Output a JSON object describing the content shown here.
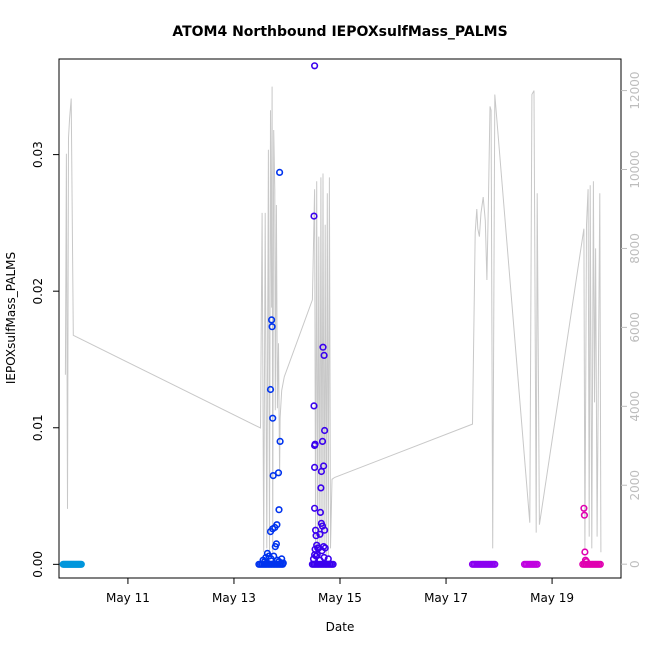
{
  "chart_data": {
    "type": "scatter",
    "title": "ATOM4 Northbound IEPOXsulfMass_PALMS",
    "xlabel": "Date",
    "ylabel": "IEPOXsulfMass_PALMS",
    "x_unit": "day-of-May",
    "xlim": [
      9.7,
      20.3
    ],
    "ylim": [
      -0.001,
      0.037
    ],
    "y2lim": [
      -350,
      12800
    ],
    "x_ticks": [
      {
        "value": 11,
        "label": "May 11"
      },
      {
        "value": 13,
        "label": "May 13"
      },
      {
        "value": 15,
        "label": "May 15"
      },
      {
        "value": 17,
        "label": "May 17"
      },
      {
        "value": 19,
        "label": "May 19"
      }
    ],
    "y_ticks": [
      {
        "value": 0.0,
        "label": "0.00"
      },
      {
        "value": 0.01,
        "label": "0.01"
      },
      {
        "value": 0.02,
        "label": "0.02"
      },
      {
        "value": 0.03,
        "label": "0.03"
      }
    ],
    "y2_ticks": [
      {
        "value": 0,
        "label": "0"
      },
      {
        "value": 2000,
        "label": "2000"
      },
      {
        "value": 4000,
        "label": "4000"
      },
      {
        "value": 6000,
        "label": "6000"
      },
      {
        "value": 8000,
        "label": "8000"
      },
      {
        "value": 10000,
        "label": "10000"
      },
      {
        "value": 12000,
        "label": "12000"
      }
    ],
    "grid": false,
    "legend": "none",
    "altitude_color": "#c8c8c8",
    "altitude_x": [
      9.82,
      9.84,
      9.86,
      9.88,
      9.9,
      9.93,
      9.97,
      13.5,
      13.5,
      13.53,
      13.56,
      13.59,
      13.62,
      13.65,
      13.67,
      13.69,
      13.71,
      13.72,
      13.73,
      13.75,
      13.77,
      13.78,
      13.8,
      13.82,
      13.84,
      13.86,
      13.87,
      13.9,
      13.95,
      14.48,
      14.52,
      14.54,
      14.56,
      14.58,
      14.6,
      14.62,
      14.64,
      14.66,
      14.68,
      14.7,
      14.72,
      14.74,
      14.76,
      14.78,
      14.8,
      14.82,
      14.85,
      14.9,
      17.5,
      17.55,
      17.58,
      17.6,
      17.63,
      17.66,
      17.7,
      17.74,
      17.77,
      17.8,
      17.83,
      17.85,
      17.88,
      17.92,
      18.58,
      18.62,
      18.66,
      18.7,
      18.72,
      18.76,
      19.6,
      19.62,
      19.65,
      19.68,
      19.7,
      19.72,
      19.75,
      19.78,
      19.8,
      19.82,
      19.85,
      19.9,
      19.92
    ],
    "altitude_y": [
      4800,
      10400,
      1400,
      10800,
      11300,
      11800,
      5800,
      3450,
      3450,
      8900,
      300,
      8900,
      400,
      10500,
      200,
      11500,
      6500,
      12100,
      300,
      11000,
      9500,
      3900,
      9100,
      3950,
      5600,
      2250,
      3700,
      4400,
      4750,
      6700,
      9500,
      300,
      9700,
      400,
      8300,
      300,
      9800,
      500,
      9900,
      500,
      8600,
      200,
      9400,
      200,
      9800,
      400,
      2150,
      2200,
      3550,
      8400,
      9000,
      8500,
      8300,
      8900,
      9300,
      8700,
      7200,
      9300,
      11600,
      11500,
      400,
      11900,
      1050,
      11900,
      12000,
      800,
      9400,
      1000,
      8500,
      400,
      8600,
      9500,
      700,
      9600,
      400,
      9700,
      4100,
      8000,
      700,
      9400,
      300
    ],
    "series": [
      {
        "color": "#0096dc",
        "points": [
          [
            9.78,
            0
          ],
          [
            9.8,
            0
          ],
          [
            9.82,
            0
          ],
          [
            9.84,
            0
          ],
          [
            9.86,
            0
          ],
          [
            9.88,
            0
          ],
          [
            9.9,
            0
          ],
          [
            9.92,
            0
          ],
          [
            9.94,
            0
          ],
          [
            9.96,
            0
          ],
          [
            9.98,
            0
          ],
          [
            10.0,
            0
          ],
          [
            10.02,
            0
          ],
          [
            10.04,
            0
          ],
          [
            10.06,
            0
          ],
          [
            10.08,
            0
          ],
          [
            10.1,
            0
          ],
          [
            10.12,
            0
          ]
        ]
      },
      {
        "color": "#0033ee",
        "points": [
          [
            13.47,
            0
          ],
          [
            13.5,
            0
          ],
          [
            13.53,
            0
          ],
          [
            13.56,
            0
          ],
          [
            13.59,
            0
          ],
          [
            13.62,
            0
          ],
          [
            13.65,
            0
          ],
          [
            13.68,
            0
          ],
          [
            13.71,
            0
          ],
          [
            13.74,
            0
          ],
          [
            13.77,
            0
          ],
          [
            13.8,
            0
          ],
          [
            13.83,
            0
          ],
          [
            13.86,
            0
          ],
          [
            13.89,
            0
          ],
          [
            13.92,
            0
          ],
          [
            13.55,
            0.0003
          ],
          [
            13.6,
            0.0005
          ],
          [
            13.63,
            0.0008
          ],
          [
            13.58,
            0.0002
          ],
          [
            13.7,
            0.0004
          ],
          [
            13.75,
            0.0006
          ],
          [
            13.82,
            0.0003
          ],
          [
            13.85,
            0.0002
          ],
          [
            13.9,
            0.0004
          ],
          [
            13.93,
            0.0001
          ],
          [
            13.69,
            0.0128
          ],
          [
            13.71,
            0.0179
          ],
          [
            13.72,
            0.0174
          ],
          [
            13.73,
            0.0107
          ],
          [
            13.86,
            0.0287
          ],
          [
            13.87,
            0.009
          ],
          [
            13.74,
            0.0065
          ],
          [
            13.84,
            0.0067
          ],
          [
            13.85,
            0.004
          ],
          [
            13.77,
            0.0027
          ],
          [
            13.81,
            0.0029
          ],
          [
            13.69,
            0.0024
          ],
          [
            13.73,
            0.0026
          ],
          [
            13.78,
            0.0013
          ],
          [
            13.8,
            0.0015
          ],
          [
            13.66,
            0.0006
          ]
        ]
      },
      {
        "color": "#3a00ee",
        "points": [
          [
            14.48,
            0
          ],
          [
            14.51,
            0
          ],
          [
            14.54,
            0
          ],
          [
            14.57,
            0
          ],
          [
            14.6,
            0
          ],
          [
            14.63,
            0
          ],
          [
            14.66,
            0
          ],
          [
            14.69,
            0
          ],
          [
            14.72,
            0
          ],
          [
            14.75,
            0
          ],
          [
            14.78,
            0
          ],
          [
            14.81,
            0
          ],
          [
            14.84,
            0
          ],
          [
            14.87,
            0
          ],
          [
            14.5,
            0.0004
          ],
          [
            14.55,
            0.0006
          ],
          [
            14.62,
            0.0003
          ],
          [
            14.7,
            0.0005
          ],
          [
            14.78,
            0.0004
          ],
          [
            14.52,
            0.0365
          ],
          [
            14.51,
            0.0255
          ],
          [
            14.51,
            0.0116
          ],
          [
            14.52,
            0.0087
          ],
          [
            14.53,
            0.0088
          ],
          [
            14.52,
            0.0071
          ],
          [
            14.52,
            0.0041
          ],
          [
            14.68,
            0.0159
          ],
          [
            14.7,
            0.0153
          ],
          [
            14.71,
            0.0098
          ],
          [
            14.67,
            0.009
          ],
          [
            14.69,
            0.0072
          ],
          [
            14.65,
            0.0068
          ],
          [
            14.64,
            0.0056
          ],
          [
            14.63,
            0.0038
          ],
          [
            14.65,
            0.003
          ],
          [
            14.67,
            0.0028
          ],
          [
            14.71,
            0.0025
          ],
          [
            14.62,
            0.0022
          ],
          [
            14.54,
            0.0025
          ],
          [
            14.55,
            0.0021
          ],
          [
            14.53,
            0.0011
          ],
          [
            14.52,
            0.0007
          ],
          [
            14.56,
            0.0014
          ],
          [
            14.58,
            0.0012
          ],
          [
            14.6,
            0.0012
          ],
          [
            14.66,
            0.001
          ],
          [
            14.69,
            0.0013
          ],
          [
            14.72,
            0.0012
          ],
          [
            14.57,
            0.0007
          ]
        ]
      },
      {
        "color": "#8a00f0",
        "points": [
          [
            17.5,
            0
          ],
          [
            17.53,
            0
          ],
          [
            17.56,
            0
          ],
          [
            17.59,
            0
          ],
          [
            17.62,
            0
          ],
          [
            17.65,
            0
          ],
          [
            17.68,
            0
          ],
          [
            17.71,
            0
          ],
          [
            17.74,
            0
          ],
          [
            17.77,
            0
          ],
          [
            17.8,
            0
          ],
          [
            17.83,
            0
          ],
          [
            17.86,
            0
          ],
          [
            17.89,
            0
          ],
          [
            17.92,
            0
          ]
        ]
      },
      {
        "color": "#c000e0",
        "points": [
          [
            18.48,
            0
          ],
          [
            18.51,
            0
          ],
          [
            18.54,
            0
          ],
          [
            18.57,
            0
          ],
          [
            18.6,
            0
          ],
          [
            18.63,
            0
          ],
          [
            18.66,
            0
          ],
          [
            18.69,
            0
          ],
          [
            18.72,
            0
          ]
        ]
      },
      {
        "color": "#e000b0",
        "points": [
          [
            19.58,
            0
          ],
          [
            19.61,
            0
          ],
          [
            19.64,
            0
          ],
          [
            19.67,
            0
          ],
          [
            19.7,
            0
          ],
          [
            19.73,
            0
          ],
          [
            19.76,
            0
          ],
          [
            19.79,
            0
          ],
          [
            19.82,
            0
          ],
          [
            19.85,
            0
          ],
          [
            19.88,
            0
          ],
          [
            19.91,
            0
          ],
          [
            19.6,
            0.0041
          ],
          [
            19.61,
            0.0036
          ],
          [
            19.62,
            0.0009
          ],
          [
            19.63,
            0.0003
          ],
          [
            19.65,
            0.0002
          ]
        ]
      }
    ]
  }
}
